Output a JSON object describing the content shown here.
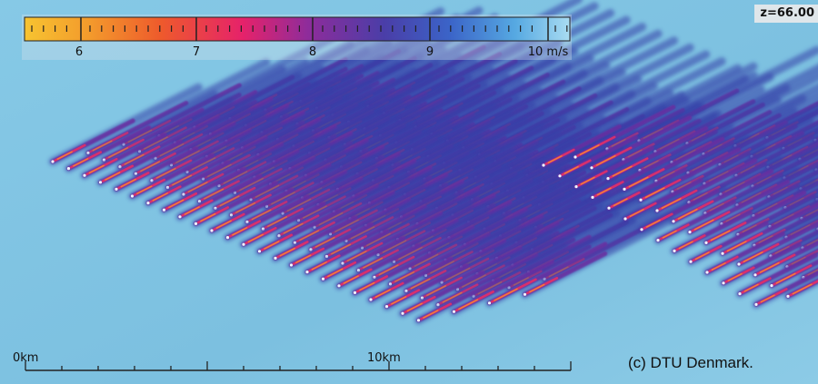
{
  "colorbar": {
    "unit_label": "10 m/s",
    "ticks": [
      "6",
      "7",
      "8",
      "9"
    ],
    "stops": [
      "#f7c431",
      "#f39a2c",
      "#ee5a2c",
      "#e6226a",
      "#8e2c9b",
      "#4a3ea8",
      "#3b64c8",
      "#56a9e2",
      "#a9dcf2"
    ]
  },
  "scalebar": {
    "start_label": "0km",
    "mid_label": "10km"
  },
  "z_label": "z=66.00",
  "copyright": "(c) DTU Denmark.",
  "colors": {
    "background": "#7fc3e2",
    "wake_dark": "#3a3aa6",
    "wake_core": "#c2246e"
  }
}
